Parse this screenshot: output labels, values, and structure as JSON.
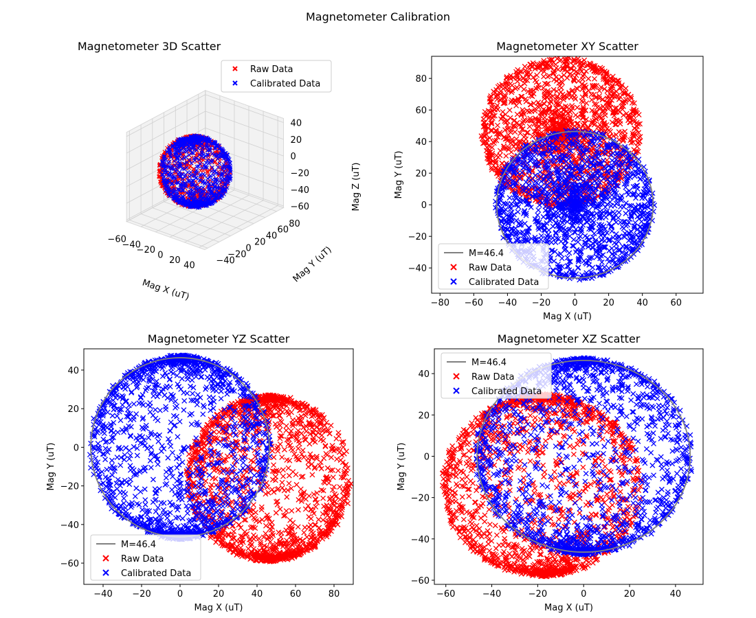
{
  "figure": {
    "title": "Magnetometer Calibration"
  },
  "colors": {
    "raw": "#ff0000",
    "calibrated": "#0000ff",
    "circle": "#808080"
  },
  "chart_data": [
    {
      "type": "scatter",
      "projection": "3d",
      "title": "Magnetometer 3D Scatter",
      "xlabel": "Mag X (uT)",
      "ylabel": "Mag Y (uT)",
      "zlabel": "Mag Z (uT)",
      "xticks": [
        "−60",
        "−40",
        "−20",
        "0",
        "20",
        "40"
      ],
      "yticks": [
        "−40",
        "−20",
        "0",
        "20",
        "40",
        "60",
        "80"
      ],
      "zticks": [
        "40",
        "20",
        "0",
        "−20",
        "−40",
        "−60"
      ],
      "xlim": [
        -65,
        48
      ],
      "ylim": [
        -45,
        92
      ],
      "zlim": [
        -62,
        45
      ],
      "legend": {
        "position": "top-right",
        "entries": [
          "Raw Data",
          "Calibrated Data"
        ]
      },
      "series": [
        {
          "name": "Raw Data",
          "color": "#ff0000",
          "marker": "x",
          "center": [
            -8,
            25,
            -5
          ],
          "radius": 46.4
        },
        {
          "name": "Calibrated Data",
          "color": "#0000ff",
          "marker": "x",
          "center": [
            0,
            0,
            0
          ],
          "radius": 46.4
        }
      ]
    },
    {
      "type": "scatter",
      "title": "Magnetometer XY Scatter",
      "xlabel": "Mag X (uT)",
      "ylabel": "Mag Y (uT)",
      "xlim": [
        -85,
        76
      ],
      "ylim": [
        -56,
        94
      ],
      "xticks": [
        -80,
        -60,
        -40,
        -20,
        0,
        20,
        40,
        60
      ],
      "yticks": [
        -40,
        -20,
        0,
        20,
        40,
        60,
        80
      ],
      "legend": {
        "position": "lower-left",
        "entries": [
          "M=46.4",
          "Raw Data",
          "Calibrated Data"
        ]
      },
      "circle": {
        "label": "M=46.4",
        "center": [
          0,
          0
        ],
        "radius": 46.4
      },
      "series": [
        {
          "name": "Raw Data",
          "color": "#ff0000",
          "marker": "x",
          "center": [
            -8,
            46
          ],
          "radius": 46.4
        },
        {
          "name": "Calibrated Data",
          "color": "#0000ff",
          "marker": "x",
          "center": [
            0,
            0
          ],
          "radius": 46.4
        }
      ]
    },
    {
      "type": "scatter",
      "title": "Magnetometer YZ Scatter",
      "xlabel": "Mag X (uT)",
      "ylabel": "Mag Y (uT)",
      "xlim": [
        -50,
        90
      ],
      "ylim": [
        -71,
        51
      ],
      "xticks": [
        -40,
        -20,
        0,
        20,
        40,
        60,
        80
      ],
      "yticks": [
        -60,
        -40,
        -20,
        0,
        20,
        40
      ],
      "legend": {
        "position": "lower-left",
        "entries": [
          "M=46.4",
          "Raw Data",
          "Calibrated Data"
        ]
      },
      "circle": {
        "label": "M=46.4",
        "center": [
          0,
          0
        ],
        "radius": 46.4
      },
      "series": [
        {
          "name": "Raw Data",
          "color": "#ff0000",
          "marker": "x",
          "center": [
            46,
            -16
          ],
          "radius": 42
        },
        {
          "name": "Calibrated Data",
          "color": "#0000ff",
          "marker": "x",
          "center": [
            0,
            0
          ],
          "radius": 46.4
        }
      ]
    },
    {
      "type": "scatter",
      "title": "Magnetometer XZ Scatter",
      "xlabel": "Mag X (uT)",
      "ylabel": "Mag Y (uT)",
      "xlim": [
        -65,
        52
      ],
      "ylim": [
        -62,
        52
      ],
      "xticks": [
        -60,
        -40,
        -20,
        0,
        20,
        40
      ],
      "yticks": [
        -60,
        -40,
        -20,
        0,
        20,
        40
      ],
      "legend": {
        "position": "top-left",
        "entries": [
          "M=46.4",
          "Raw Data",
          "Calibrated Data"
        ]
      },
      "circle": {
        "label": "M=46.4",
        "center": [
          0,
          0
        ],
        "radius": 46.4
      },
      "series": [
        {
          "name": "Raw Data",
          "color": "#ff0000",
          "marker": "x",
          "center": [
            -18,
            -14
          ],
          "radius": 43
        },
        {
          "name": "Calibrated Data",
          "color": "#0000ff",
          "marker": "x",
          "center": [
            0,
            0
          ],
          "radius": 46.4
        }
      ]
    }
  ]
}
